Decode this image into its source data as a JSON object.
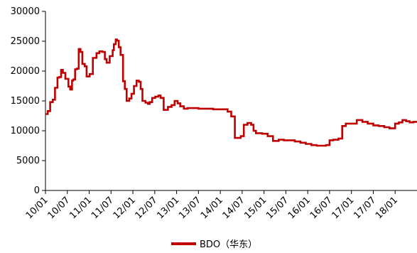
{
  "chart_data": {
    "type": "line",
    "title": "",
    "xlabel": "",
    "ylabel": "",
    "ylim": [
      0,
      30000
    ],
    "y_ticks": [
      0,
      5000,
      10000,
      15000,
      20000,
      25000,
      30000
    ],
    "y_tick_labels": [
      "0",
      "5000",
      "10000",
      "15000",
      "20000",
      "25000",
      "30000"
    ],
    "x_range": [
      "2010-01",
      "2018-07"
    ],
    "x_ticks": [
      "2010-01",
      "2010-07",
      "2011-01",
      "2011-07",
      "2012-01",
      "2012-07",
      "2013-01",
      "2013-07",
      "2014-01",
      "2014-07",
      "2015-01",
      "2015-07",
      "2016-01",
      "2016-07",
      "2017-01",
      "2017-07",
      "2018-01"
    ],
    "x_tick_labels": [
      "10/01",
      "10/07",
      "11/01",
      "11/07",
      "12/01",
      "12/07",
      "13/01",
      "13/07",
      "14/01",
      "14/07",
      "15/01",
      "15/07",
      "16/01",
      "16/07",
      "17/01",
      "17/07",
      "18/01"
    ],
    "grid": false,
    "legend_position": "bottom",
    "series": [
      {
        "name": "BDO（华东）",
        "color": "#c00000",
        "step": true,
        "x": [
          "2010-01-05",
          "2010-01-20",
          "2010-02-10",
          "2010-03-01",
          "2010-03-20",
          "2010-04-10",
          "2010-04-25",
          "2010-05-10",
          "2010-05-25",
          "2010-06-15",
          "2010-07-10",
          "2010-07-25",
          "2010-08-10",
          "2010-08-20",
          "2010-09-05",
          "2010-09-20",
          "2010-10-05",
          "2010-10-20",
          "2010-11-05",
          "2010-11-25",
          "2010-12-10",
          "2011-01-05",
          "2011-02-01",
          "2011-03-01",
          "2011-03-25",
          "2011-04-20",
          "2011-05-10",
          "2011-05-25",
          "2011-06-20",
          "2011-07-15",
          "2011-07-25",
          "2011-08-10",
          "2011-08-20",
          "2011-09-05",
          "2011-09-20",
          "2011-10-10",
          "2011-10-25",
          "2011-11-10",
          "2011-12-01",
          "2011-12-20",
          "2012-01-10",
          "2012-02-01",
          "2012-02-20",
          "2012-03-05",
          "2012-03-20",
          "2012-04-15",
          "2012-05-05",
          "2012-05-20",
          "2012-06-10",
          "2012-07-05",
          "2012-08-01",
          "2012-08-20",
          "2012-09-15",
          "2012-10-20",
          "2012-11-20",
          "2012-12-15",
          "2013-01-10",
          "2013-02-01",
          "2013-03-01",
          "2013-04-01",
          "2013-05-01",
          "2013-07-01",
          "2013-09-01",
          "2013-11-01",
          "2014-01-01",
          "2014-03-01",
          "2014-04-01",
          "2014-05-01",
          "2014-06-01",
          "2014-06-20",
          "2014-07-15",
          "2014-08-15",
          "2014-09-15",
          "2014-10-05",
          "2014-10-25",
          "2014-11-15",
          "2014-12-15",
          "2015-02-01",
          "2015-03-15",
          "2015-05-01",
          "2015-06-15",
          "2015-08-01",
          "2015-09-15",
          "2015-11-01",
          "2015-12-15",
          "2016-02-01",
          "2016-03-15",
          "2016-04-15",
          "2016-06-01",
          "2016-07-01",
          "2016-08-01",
          "2016-09-15",
          "2016-10-15",
          "2016-11-15",
          "2017-01-01",
          "2017-02-15",
          "2017-04-01",
          "2017-05-15",
          "2017-07-01",
          "2017-08-15",
          "2017-10-01",
          "2017-11-15",
          "2018-01-01",
          "2018-02-01",
          "2018-03-01",
          "2018-04-01",
          "2018-05-01",
          "2018-06-01",
          "2018-07-01"
        ],
        "y": [
          12800,
          13300,
          14800,
          15200,
          17200,
          18900,
          19000,
          20200,
          19700,
          18700,
          17400,
          16900,
          18400,
          18600,
          20300,
          20400,
          23700,
          23200,
          21200,
          20800,
          19100,
          19500,
          22200,
          23000,
          23300,
          23200,
          22000,
          21400,
          22500,
          23500,
          24500,
          25300,
          25100,
          24000,
          22700,
          18300,
          17000,
          15000,
          15400,
          16200,
          17500,
          18400,
          18200,
          17000,
          15000,
          14700,
          14500,
          14800,
          15500,
          15700,
          15900,
          15500,
          13500,
          14000,
          14300,
          15000,
          14600,
          14100,
          13700,
          13800,
          13800,
          13700,
          13700,
          13600,
          13600,
          13200,
          12400,
          8800,
          8800,
          9100,
          11000,
          11300,
          11000,
          10000,
          9600,
          9600,
          9500,
          9100,
          8300,
          8500,
          8400,
          8400,
          8200,
          8000,
          7800,
          7600,
          7500,
          7500,
          7600,
          8400,
          8500,
          8700,
          10800,
          11200,
          11200,
          11800,
          11500,
          11200,
          10900,
          10800,
          10600,
          10400,
          11200,
          11400,
          11800,
          11600,
          11400,
          11500,
          11500
        ]
      }
    ]
  }
}
